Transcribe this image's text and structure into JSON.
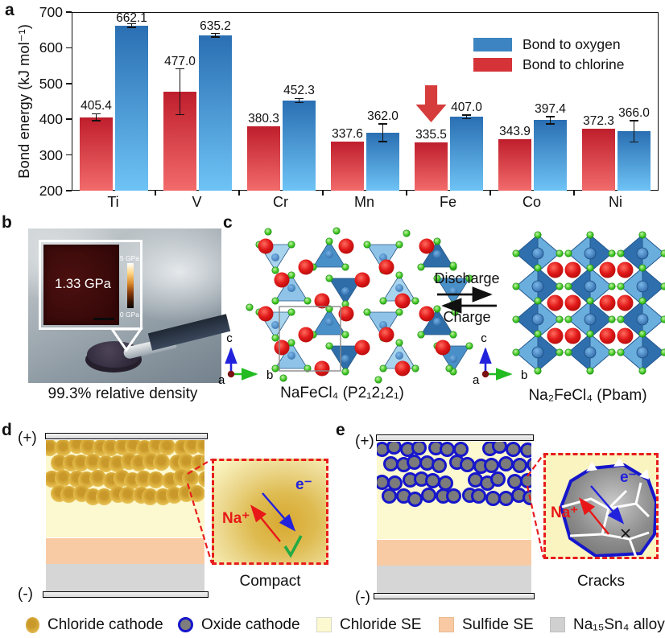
{
  "panels": {
    "a": "a",
    "b": "b",
    "c": "c",
    "d": "d",
    "e": "e"
  },
  "chart_data": {
    "type": "bar",
    "ylabel": "Bond energy (kJ mol⁻¹)",
    "categories": [
      "Ti",
      "V",
      "Cr",
      "Mn",
      "Fe",
      "Co",
      "Ni"
    ],
    "ylim": [
      200,
      700
    ],
    "yticks": [
      200,
      300,
      400,
      500,
      600,
      700
    ],
    "grid": false,
    "legend_position": "top-right",
    "series": [
      {
        "name": "Bond to oxygen",
        "legend_color": "#3c85c2",
        "values": [
          662.1,
          635.2,
          452.3,
          362.0,
          407.0,
          397.4,
          366.0
        ],
        "errors": [
          5,
          5,
          6,
          25,
          5,
          10,
          30
        ]
      },
      {
        "name": "Bond to chlorine",
        "legend_color": "#d53338",
        "values": [
          405.4,
          477.0,
          380.3,
          337.6,
          335.5,
          343.9,
          372.3
        ],
        "errors": [
          10,
          64,
          0,
          0,
          0,
          0,
          0
        ]
      }
    ],
    "annotation_arrow": {
      "category": "Fe",
      "series": "Bond to chlorine"
    }
  },
  "panel_b": {
    "inset_value": "1.33 GPa",
    "scale_max": "5 GPa",
    "scale_min": "0 GPa",
    "caption": "99.3% relative density"
  },
  "panel_c": {
    "discharge": "Discharge",
    "charge": "Charge",
    "left_formula": "NaFeCl₄ (P2₁2₁2₁)",
    "right_formula": "Na₂FeCl₄ (Pbam)",
    "axis_a": "a",
    "axis_b": "b",
    "axis_c": "c"
  },
  "panel_d": {
    "plus": "(+)",
    "minus": "(-)",
    "na_ion": "Na⁺",
    "electron": "e⁻",
    "check": "✓",
    "caption": "Compact"
  },
  "panel_e": {
    "plus": "(+)",
    "minus": "(-)",
    "na_ion": "Na⁺",
    "electron": "e⁻",
    "cross": "×",
    "caption": "Cracks"
  },
  "legend": {
    "items": [
      {
        "label": "Chloride cathode",
        "icon": "chloride-sphere-icon"
      },
      {
        "label": "Oxide cathode",
        "icon": "oxide-sphere-icon"
      },
      {
        "label": "Chloride SE",
        "icon": "yellow-square-icon",
        "color": "#fcf8cf"
      },
      {
        "label": "Sulfide SE",
        "icon": "peach-square-icon",
        "color": "#f8c9a2"
      },
      {
        "label": "Na₁₅Sn₄ alloy",
        "icon": "gray-square-icon",
        "color": "#d0d0d0"
      }
    ]
  },
  "colors": {
    "oxygen_top": "#2a6fb3",
    "oxygen_bottom": "#6ec3f5",
    "chlorine_top": "#bf1e2c",
    "chlorine_bottom": "#f26b6b",
    "chloride_se": "#fcf8cf",
    "sulfide_se": "#f8cba5",
    "alloy": "#d6d6d6",
    "oxide_ring": "#1616cc",
    "arrow_red": "#d63c3c"
  }
}
